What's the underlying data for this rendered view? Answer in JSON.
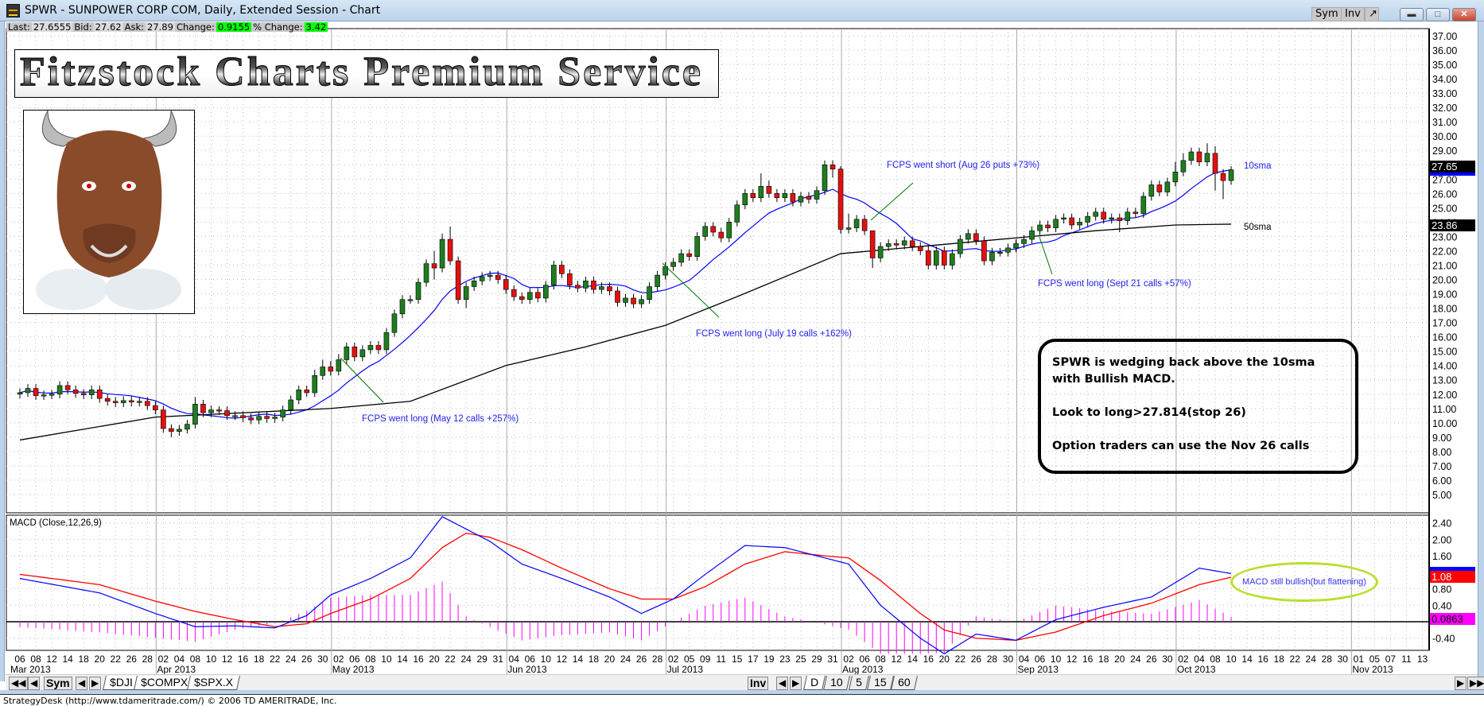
{
  "window": {
    "title": "SPWR - SUNPOWER CORP COM, Daily, Extended Session - Chart",
    "buttons": {
      "sym": "Sym",
      "inv": "Inv"
    }
  },
  "quote": {
    "last_label": "Last:",
    "last": "27.6555",
    "bid_label": "Bid:",
    "bid": "27.62",
    "ask_label": "Ask:",
    "ask": "27.89",
    "change_label": "Change:",
    "change": "0.9155",
    "pct_change_label": "% Change:",
    "pct_change": "3.42"
  },
  "banner": {
    "text": "Fitzstock Charts Premium Service"
  },
  "annotations": {
    "may": "FCPS went long (May 12 calls +257%)",
    "july": "FCPS went long (July 19 calls +162%)",
    "aug": "FCPS went short (Aug 26 puts +73%)",
    "sept": "FCPS went long (Sept 21 calls +57%)",
    "sma10": "10sma",
    "sma50": "50sma",
    "note": [
      "SPWR is wedging back above the 10sma with Bullish MACD.",
      "Look to long>27.814(stop 26)",
      "Option traders can use the Nov 26 calls"
    ],
    "macd_note": "MACD still bullish(but flattening)"
  },
  "colors": {
    "up": "#1e7d1e",
    "down": "#e41010",
    "sma10": "#0000ff",
    "sma50": "#000000",
    "macd": "#0000ff",
    "signal": "#ff0000",
    "histogram": "#ff00ff",
    "annotation_line": "#007700"
  },
  "chart_data": [
    {
      "type": "candlestick",
      "symbol": "SPWR",
      "ylim": [
        5,
        37
      ],
      "price_ticks": [
        "5.00",
        "6.00",
        "7.00",
        "8.00",
        "9.00",
        "10.00",
        "11.00",
        "12.00",
        "13.00",
        "14.00",
        "15.00",
        "16.00",
        "17.00",
        "18.00",
        "19.00",
        "20.00",
        "21.00",
        "22.00",
        "23.00",
        "24.00",
        "25.00",
        "26.00",
        "27.00",
        "28.00",
        "29.00",
        "30.00",
        "31.00",
        "32.00",
        "33.00",
        "34.00",
        "35.00",
        "36.00",
        "37.00"
      ],
      "last_price_label": "27.65",
      "sma50_label": "23.86",
      "first_date": "2013-03-06",
      "open": [
        12.0,
        12.1,
        12.4,
        11.9,
        11.95,
        12.0,
        12.6,
        12.3,
        12.05,
        11.95,
        12.3,
        11.7,
        11.5,
        11.4,
        11.55,
        11.45,
        11.5,
        11.2,
        10.9,
        9.6,
        9.4,
        9.55,
        9.9,
        11.3,
        10.7,
        10.9,
        10.85,
        10.5,
        10.5,
        10.35,
        10.2,
        10.45,
        10.3,
        10.4,
        10.9,
        11.6,
        12.3,
        12.1,
        13.3,
        13.9,
        13.6,
        14.4,
        15.3,
        14.6,
        15.1,
        15.4,
        15.1,
        16.3,
        17.6,
        18.6,
        18.6,
        19.8,
        21.1,
        20.8,
        22.8,
        21.3,
        18.6,
        19.5,
        19.9,
        20.2,
        20.3,
        20.0,
        19.3,
        18.8,
        18.6,
        19.1,
        18.7,
        19.6,
        21.0,
        20.4,
        19.6,
        19.4,
        19.9,
        19.3,
        19.5,
        19.2,
        18.4,
        18.7,
        18.3,
        18.6,
        19.5,
        20.3,
        20.9,
        21.2,
        21.8,
        21.6,
        23.0,
        23.7,
        23.3,
        22.9,
        24.0,
        25.2,
        26.0,
        25.7,
        26.5,
        26.0,
        25.7,
        26.0,
        25.4,
        25.8,
        25.6,
        26.2,
        28.0,
        27.7,
        23.5,
        23.6,
        24.2,
        23.4,
        21.5,
        22.3,
        22.5,
        22.4,
        22.7,
        22.3,
        22.0,
        21.0,
        22.0,
        21.0,
        21.8,
        22.8,
        23.2,
        22.7,
        21.3,
        21.9,
        21.9,
        22.2,
        22.5,
        22.8,
        23.4,
        23.8,
        23.6,
        24.2,
        24.3,
        23.8,
        24.0,
        24.4,
        24.7,
        24.2,
        24.3,
        24.1,
        24.7,
        24.6,
        25.8,
        26.6,
        26.1,
        26.8,
        27.5,
        28.3,
        28.9,
        28.2,
        28.8,
        27.4,
        26.9
      ],
      "high": [
        12.4,
        12.7,
        12.7,
        12.25,
        12.3,
        12.9,
        12.9,
        12.6,
        12.35,
        12.6,
        12.6,
        12.0,
        11.8,
        11.85,
        11.85,
        11.8,
        11.8,
        11.5,
        11.2,
        9.9,
        9.85,
        10.2,
        11.8,
        11.6,
        11.2,
        11.15,
        11.15,
        10.8,
        10.8,
        10.65,
        10.75,
        10.75,
        10.7,
        11.2,
        11.9,
        12.6,
        12.6,
        13.7,
        14.4,
        14.3,
        14.8,
        15.6,
        15.6,
        15.4,
        15.7,
        15.7,
        16.6,
        17.9,
        18.9,
        18.9,
        20.1,
        21.4,
        22.0,
        23.2,
        23.7,
        21.6,
        19.8,
        20.2,
        20.5,
        20.6,
        20.6,
        20.3,
        19.6,
        19.1,
        19.4,
        19.4,
        19.9,
        21.3,
        21.3,
        20.7,
        19.9,
        20.2,
        20.2,
        19.8,
        19.8,
        19.5,
        19.0,
        19.0,
        18.9,
        19.8,
        20.6,
        21.2,
        21.5,
        22.1,
        22.1,
        23.3,
        24.0,
        24.0,
        23.6,
        24.3,
        25.5,
        26.3,
        26.3,
        27.4,
        26.9,
        26.3,
        26.3,
        26.3,
        26.1,
        26.1,
        26.5,
        28.3,
        28.3,
        27.9,
        24.6,
        24.5,
        24.5,
        23.4,
        22.6,
        22.8,
        22.8,
        23.0,
        23.0,
        22.6,
        22.3,
        22.3,
        22.3,
        22.1,
        23.1,
        23.5,
        23.5,
        23.0,
        22.2,
        22.2,
        22.5,
        22.8,
        23.1,
        23.7,
        24.1,
        24.1,
        24.5,
        24.6,
        24.6,
        24.3,
        24.7,
        25.0,
        25.0,
        24.6,
        24.6,
        25.0,
        25.0,
        26.1,
        26.9,
        26.9,
        27.1,
        28.2,
        28.8,
        29.2,
        29.2,
        29.5,
        29.3,
        27.7,
        27.9
      ],
      "low": [
        11.7,
        11.8,
        11.6,
        11.6,
        11.65,
        11.7,
        12.0,
        11.75,
        11.65,
        11.65,
        11.4,
        11.2,
        11.1,
        11.1,
        11.15,
        11.15,
        10.9,
        10.6,
        9.3,
        9.0,
        9.1,
        9.25,
        9.6,
        10.4,
        10.4,
        10.55,
        10.2,
        10.2,
        10.05,
        9.9,
        9.9,
        10.0,
        10.0,
        10.1,
        10.6,
        11.3,
        11.8,
        11.8,
        13.0,
        13.3,
        13.3,
        14.1,
        14.3,
        14.3,
        14.8,
        14.8,
        14.8,
        16.0,
        17.3,
        18.3,
        18.3,
        19.5,
        20.0,
        20.5,
        21.0,
        18.3,
        18.0,
        19.2,
        19.6,
        19.9,
        19.7,
        19.0,
        18.5,
        18.3,
        18.3,
        18.4,
        18.4,
        19.3,
        20.1,
        19.3,
        19.1,
        19.1,
        19.0,
        19.0,
        18.9,
        18.1,
        18.1,
        18.0,
        18.0,
        18.3,
        19.2,
        20.0,
        20.6,
        20.9,
        21.3,
        21.3,
        22.7,
        23.0,
        22.6,
        22.6,
        23.7,
        24.9,
        25.4,
        25.4,
        25.7,
        25.4,
        25.4,
        25.1,
        25.1,
        25.3,
        25.3,
        25.9,
        27.1,
        23.2,
        23.2,
        23.3,
        23.1,
        20.8,
        21.2,
        22.0,
        22.1,
        22.1,
        22.0,
        21.7,
        20.7,
        20.7,
        20.7,
        20.7,
        21.5,
        22.5,
        22.4,
        21.0,
        21.0,
        21.6,
        21.6,
        21.9,
        22.2,
        22.5,
        23.1,
        23.3,
        23.3,
        23.9,
        23.5,
        23.5,
        23.7,
        24.1,
        23.9,
        23.9,
        23.3,
        23.8,
        24.3,
        24.3,
        25.5,
        25.8,
        25.8,
        26.5,
        27.2,
        28.0,
        27.9,
        27.9,
        26.2,
        25.6,
        26.6
      ],
      "close": [
        12.1,
        12.4,
        11.9,
        11.95,
        12.0,
        12.6,
        12.3,
        12.05,
        11.95,
        12.3,
        11.7,
        11.5,
        11.4,
        11.55,
        11.45,
        11.5,
        11.2,
        10.9,
        9.6,
        9.4,
        9.55,
        9.9,
        11.3,
        10.7,
        10.9,
        10.85,
        10.5,
        10.5,
        10.35,
        10.2,
        10.45,
        10.3,
        10.4,
        10.9,
        11.6,
        12.3,
        12.1,
        13.3,
        13.9,
        13.6,
        14.4,
        15.3,
        14.6,
        15.1,
        15.4,
        15.1,
        16.3,
        17.6,
        18.6,
        18.6,
        19.8,
        21.1,
        20.8,
        22.8,
        21.3,
        18.6,
        19.5,
        19.9,
        20.2,
        20.3,
        20.0,
        19.3,
        18.8,
        18.6,
        19.1,
        18.7,
        19.6,
        21.0,
        20.4,
        19.6,
        19.4,
        19.9,
        19.3,
        19.5,
        19.2,
        18.4,
        18.7,
        18.3,
        18.6,
        19.5,
        20.3,
        20.9,
        21.2,
        21.8,
        21.6,
        23.0,
        23.7,
        23.3,
        22.9,
        24.0,
        25.2,
        26.0,
        25.7,
        26.5,
        26.0,
        25.7,
        26.0,
        25.4,
        25.8,
        25.6,
        26.2,
        28.0,
        27.7,
        23.5,
        23.6,
        24.2,
        23.4,
        21.5,
        22.3,
        22.5,
        22.4,
        22.7,
        22.3,
        22.0,
        21.0,
        22.0,
        21.0,
        21.8,
        22.8,
        23.2,
        22.7,
        21.3,
        21.9,
        21.9,
        22.2,
        22.5,
        22.8,
        23.4,
        23.8,
        23.6,
        24.2,
        24.3,
        23.8,
        24.0,
        24.4,
        24.7,
        24.2,
        24.3,
        24.1,
        24.7,
        24.6,
        25.8,
        26.6,
        26.1,
        26.8,
        27.5,
        28.3,
        28.9,
        28.2,
        28.8,
        27.4,
        26.9,
        27.65
      ],
      "sma50": [
        [
          "2013-03-06",
          8.8
        ],
        [
          "2013-04-01",
          10.4
        ],
        [
          "2013-05-01",
          11.0
        ],
        [
          "2013-05-15",
          11.5
        ],
        [
          "2013-06-03",
          14.0
        ],
        [
          "2013-06-17",
          15.3
        ],
        [
          "2013-07-01",
          16.8
        ],
        [
          "2013-07-15",
          18.8
        ],
        [
          "2013-08-01",
          21.8
        ],
        [
          "2013-08-15",
          22.3
        ],
        [
          "2013-09-03",
          22.9
        ],
        [
          "2013-09-17",
          23.4
        ],
        [
          "2013-10-01",
          23.8
        ],
        [
          "2013-10-10",
          23.86
        ]
      ]
    },
    {
      "type": "line",
      "title": "MACD (Close,12,26,9)",
      "ylim": [
        -0.6,
        2.6
      ],
      "ticks": [
        "2.40",
        "2.00",
        "1.60",
        "0.80",
        "0.40",
        "-0.40"
      ],
      "macd_label": "1.17",
      "signal_label": "1.08",
      "histogram_label": "0.0863",
      "points": [
        [
          "2013-03-06",
          1.05,
          1.15
        ],
        [
          "2013-03-20",
          0.7,
          0.9
        ],
        [
          "2013-04-01",
          0.2,
          0.5
        ],
        [
          "2013-04-08",
          -0.12,
          0.25
        ],
        [
          "2013-04-15",
          -0.1,
          0.05
        ],
        [
          "2013-04-22",
          -0.15,
          -0.12
        ],
        [
          "2013-04-26",
          0.15,
          -0.05
        ],
        [
          "2013-05-01",
          0.65,
          0.2
        ],
        [
          "2013-05-08",
          1.05,
          0.55
        ],
        [
          "2013-05-15",
          1.55,
          1.05
        ],
        [
          "2013-05-21",
          2.55,
          1.8
        ],
        [
          "2013-05-24",
          2.25,
          2.15
        ],
        [
          "2013-05-30",
          1.95,
          2.05
        ],
        [
          "2013-06-05",
          1.4,
          1.75
        ],
        [
          "2013-06-12",
          1.05,
          1.3
        ],
        [
          "2013-06-20",
          0.6,
          0.8
        ],
        [
          "2013-06-26",
          0.2,
          0.55
        ],
        [
          "2013-07-02",
          0.55,
          0.55
        ],
        [
          "2013-07-09",
          1.15,
          0.85
        ],
        [
          "2013-07-16",
          1.85,
          1.4
        ],
        [
          "2013-07-23",
          1.8,
          1.7
        ],
        [
          "2013-07-30",
          1.55,
          1.6
        ],
        [
          "2013-08-02",
          1.4,
          1.55
        ],
        [
          "2013-08-08",
          0.4,
          1.0
        ],
        [
          "2013-08-15",
          -0.4,
          0.2
        ],
        [
          "2013-08-20",
          -0.78,
          -0.2
        ],
        [
          "2013-08-26",
          -0.3,
          -0.4
        ],
        [
          "2013-09-03",
          -0.45,
          -0.45
        ],
        [
          "2013-09-10",
          0.05,
          -0.25
        ],
        [
          "2013-09-18",
          0.35,
          0.15
        ],
        [
          "2013-09-26",
          0.6,
          0.45
        ],
        [
          "2013-10-04",
          1.3,
          0.9
        ],
        [
          "2013-10-10",
          1.17,
          1.08
        ]
      ]
    }
  ],
  "date_axis": {
    "months": [
      {
        "label": "Mar 2013",
        "days": [
          "06",
          "08",
          "12",
          "14",
          "18",
          "20",
          "22",
          "26",
          "28"
        ]
      },
      {
        "label": "Apr 2013",
        "days": [
          "02",
          "04",
          "08",
          "10",
          "12",
          "16",
          "18",
          "22",
          "24",
          "26",
          "30"
        ]
      },
      {
        "label": "May 2013",
        "days": [
          "02",
          "06",
          "08",
          "10",
          "14",
          "16",
          "20",
          "22",
          "24",
          "29",
          "31"
        ]
      },
      {
        "label": "Jun 2013",
        "days": [
          "04",
          "06",
          "10",
          "12",
          "14",
          "18",
          "20",
          "24",
          "26",
          "28"
        ]
      },
      {
        "label": "Jul 2013",
        "days": [
          "02",
          "05",
          "09",
          "11",
          "15",
          "17",
          "19",
          "23",
          "25",
          "29",
          "31"
        ]
      },
      {
        "label": "Aug 2013",
        "days": [
          "02",
          "06",
          "08",
          "12",
          "14",
          "16",
          "20",
          "22",
          "26",
          "28",
          "30"
        ]
      },
      {
        "label": "Sep 2013",
        "days": [
          "04",
          "06",
          "10",
          "12",
          "16",
          "18",
          "20",
          "24",
          "26",
          "30"
        ]
      },
      {
        "label": "Oct 2013",
        "days": [
          "02",
          "04",
          "08",
          "10",
          "14",
          "16",
          "18",
          "22",
          "24",
          "28",
          "30"
        ]
      },
      {
        "label": "Nov 2013",
        "days": [
          "01",
          "05",
          "07",
          "11",
          "13"
        ]
      }
    ]
  },
  "tabs": {
    "sym": "Sym",
    "symbols": [
      "$DJI",
      "$COMPX",
      "$SPX.X"
    ],
    "inv": "Inv",
    "intervals": [
      "D",
      "10",
      "5",
      "15",
      "60"
    ],
    "active_interval": "D"
  },
  "status": "StrategyDesk (http://www.tdameritrade.com/) © 2006 TD AMERITRADE, Inc."
}
